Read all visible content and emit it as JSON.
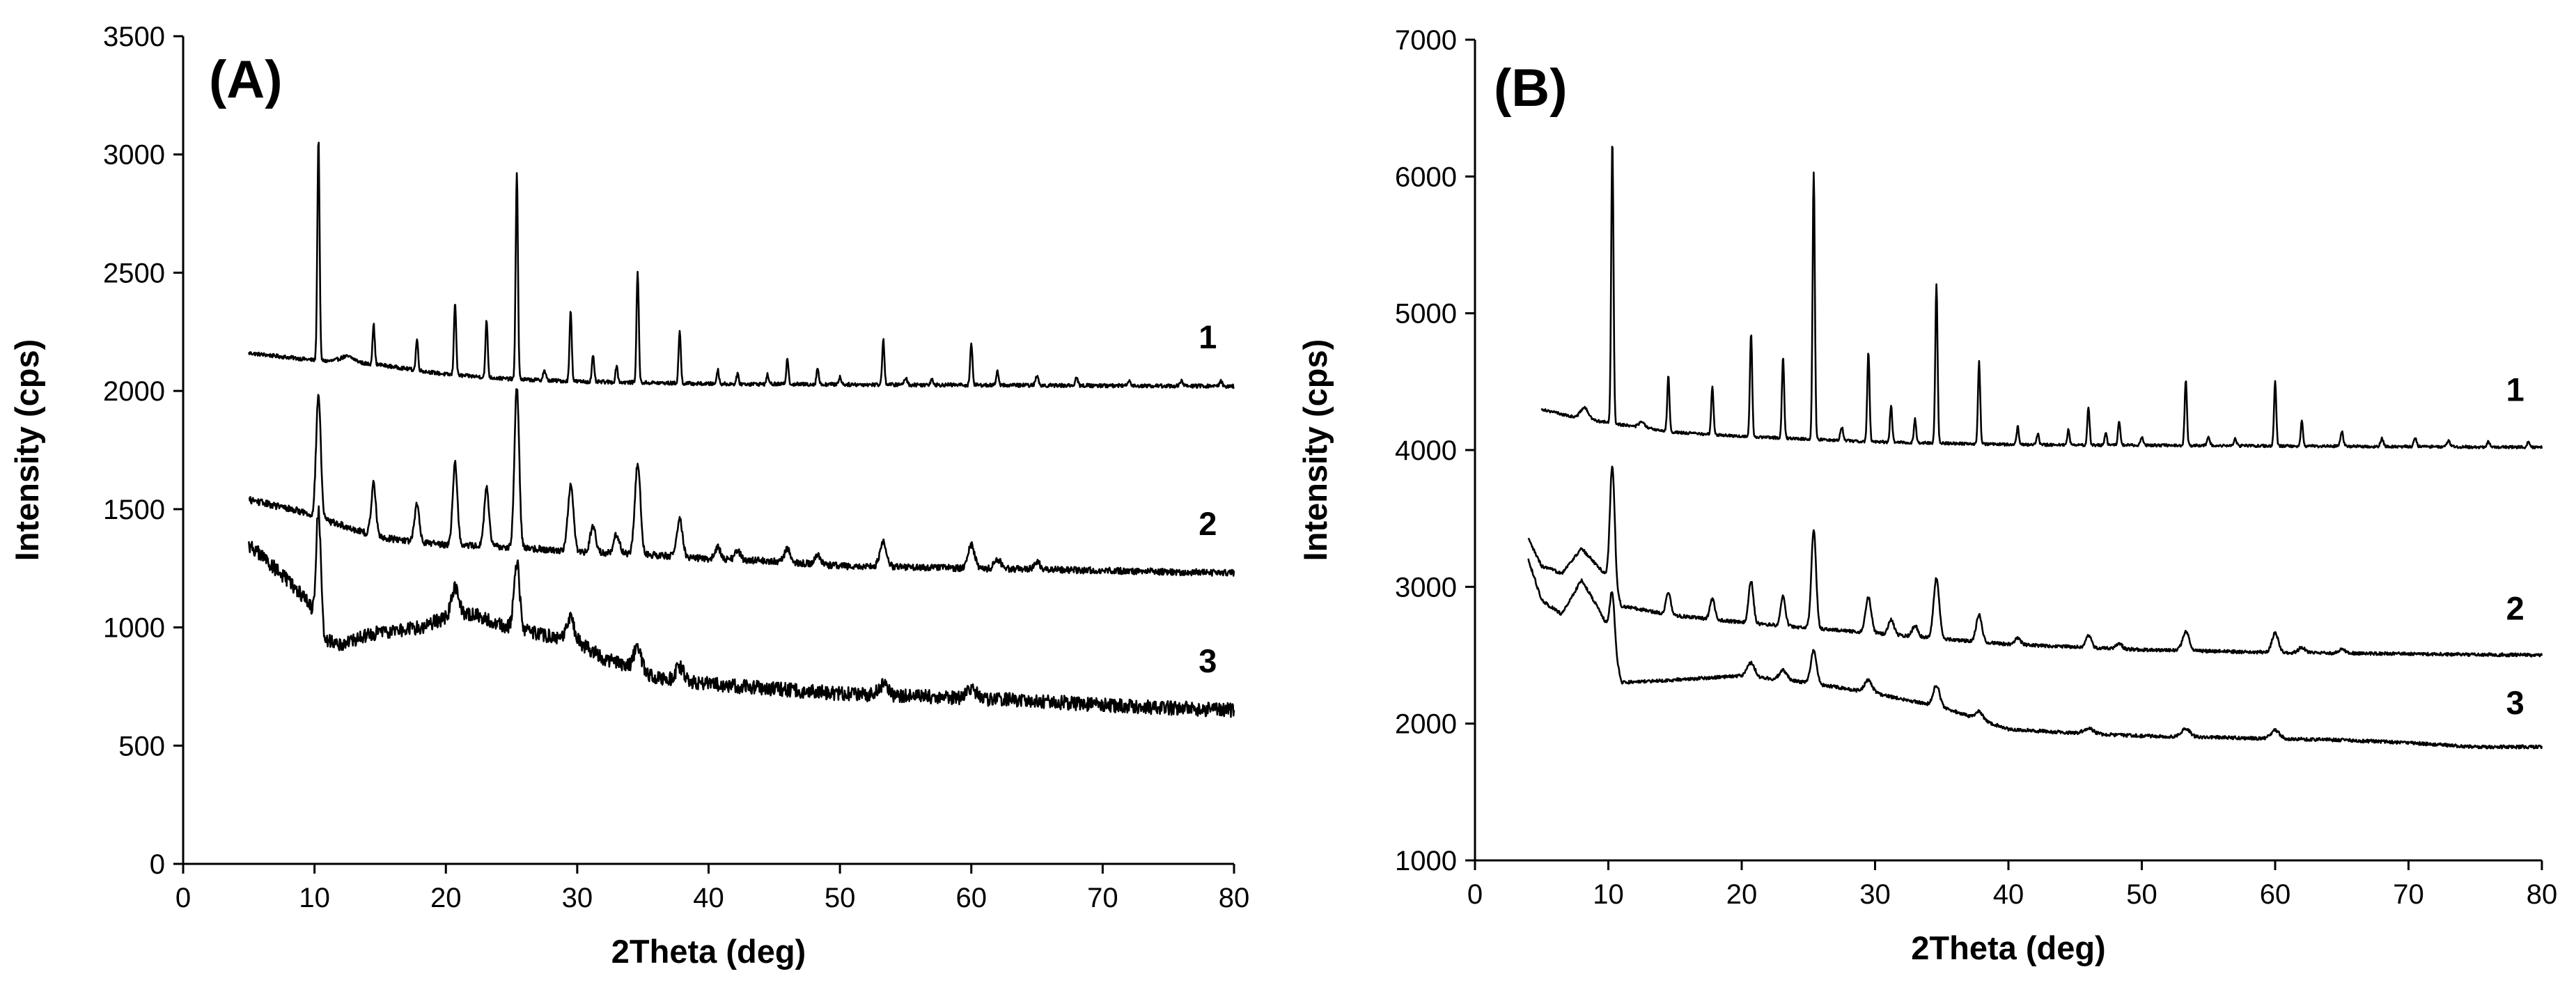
{
  "chart_data": [
    {
      "type": "line",
      "panel_label": "(A)",
      "xlabel": "2Theta (deg)",
      "ylabel": "Intensity (cps)",
      "xlim": [
        0,
        80
      ],
      "ylim": [
        0,
        3500
      ],
      "x_ticks": [
        "0",
        "10",
        "20",
        "30",
        "40",
        "50",
        "60",
        "70",
        "80"
      ],
      "y_ticks": [
        "0",
        "500",
        "1000",
        "1500",
        "2000",
        "2500",
        "3000",
        "3500"
      ],
      "grid": false,
      "series": [
        {
          "name": "1",
          "label_at": [
            78,
            2180
          ],
          "noise": 8,
          "baseline": [
            [
              5,
              2160
            ],
            [
              10,
              2130
            ],
            [
              15,
              2110
            ],
            [
              20,
              2070
            ],
            [
              25,
              2050
            ],
            [
              30,
              2040
            ],
            [
              40,
              2030
            ],
            [
              80,
              2020
            ]
          ],
          "peaks": [
            [
              10.3,
              940,
              0.12
            ],
            [
              12.5,
              25,
              0.8
            ],
            [
              14.5,
              170,
              0.12
            ],
            [
              17.8,
              130,
              0.12
            ],
            [
              20.7,
              310,
              0.12
            ],
            [
              23.1,
              240,
              0.12
            ],
            [
              25.4,
              880,
              0.12
            ],
            [
              27.5,
              40,
              0.15
            ],
            [
              29.5,
              300,
              0.12
            ],
            [
              31.2,
              110,
              0.12
            ],
            [
              33.0,
              70,
              0.12
            ],
            [
              34.6,
              470,
              0.12
            ],
            [
              37.8,
              220,
              0.12
            ],
            [
              40.7,
              60,
              0.12
            ],
            [
              42.2,
              40,
              0.12
            ],
            [
              44.5,
              40,
              0.12
            ],
            [
              46.0,
              110,
              0.12
            ],
            [
              48.3,
              70,
              0.12
            ],
            [
              50.0,
              30,
              0.15
            ],
            [
              53.3,
              190,
              0.12
            ],
            [
              55.0,
              30,
              0.15
            ],
            [
              57.0,
              25,
              0.15
            ],
            [
              60.0,
              180,
              0.12
            ],
            [
              62.0,
              60,
              0.12
            ],
            [
              65.0,
              40,
              0.15
            ],
            [
              68.0,
              30,
              0.15
            ],
            [
              72.0,
              25,
              0.15
            ],
            [
              76.0,
              20,
              0.15
            ],
            [
              79.0,
              20,
              0.15
            ]
          ]
        },
        {
          "name": "2",
          "label_at": [
            78,
            1390
          ],
          "noise": 14,
          "baseline": [
            [
              5,
              1540
            ],
            [
              9,
              1490
            ],
            [
              10.5,
              1460
            ],
            [
              15,
              1380
            ],
            [
              20,
              1350
            ],
            [
              25,
              1340
            ],
            [
              30,
              1320
            ],
            [
              35,
              1310
            ],
            [
              40,
              1290
            ],
            [
              45,
              1280
            ],
            [
              50,
              1260
            ],
            [
              60,
              1250
            ],
            [
              70,
              1240
            ],
            [
              80,
              1230
            ]
          ],
          "peaks": [
            [
              10.3,
              520,
              0.25
            ],
            [
              14.5,
              220,
              0.25
            ],
            [
              17.8,
              160,
              0.25
            ],
            [
              20.7,
              350,
              0.25
            ],
            [
              23.1,
              250,
              0.25
            ],
            [
              25.4,
              680,
              0.25
            ],
            [
              29.5,
              280,
              0.3
            ],
            [
              31.2,
              110,
              0.3
            ],
            [
              33.0,
              80,
              0.3
            ],
            [
              34.6,
              380,
              0.3
            ],
            [
              37.8,
              160,
              0.3
            ],
            [
              40.7,
              50,
              0.3
            ],
            [
              42.2,
              40,
              0.3
            ],
            [
              46.0,
              60,
              0.3
            ],
            [
              48.3,
              40,
              0.3
            ],
            [
              53.3,
              110,
              0.35
            ],
            [
              60.0,
              100,
              0.35
            ],
            [
              62.0,
              40,
              0.35
            ],
            [
              65.0,
              30,
              0.35
            ]
          ]
        },
        {
          "name": "3",
          "label_at": [
            78,
            810
          ],
          "noise": 30,
          "baseline": [
            [
              5,
              1350
            ],
            [
              7,
              1250
            ],
            [
              9.5,
              1110
            ],
            [
              10.8,
              950
            ],
            [
              12,
              930
            ],
            [
              15,
              980
            ],
            [
              18,
              1000
            ],
            [
              20,
              1040
            ],
            [
              22,
              1060
            ],
            [
              24,
              1010
            ],
            [
              26,
              990
            ],
            [
              28,
              960
            ],
            [
              30,
              940
            ],
            [
              32,
              870
            ],
            [
              34,
              830
            ],
            [
              36,
              790
            ],
            [
              40,
              760
            ],
            [
              45,
              740
            ],
            [
              50,
              720
            ],
            [
              55,
              710
            ],
            [
              60,
              700
            ],
            [
              65,
              690
            ],
            [
              70,
              670
            ],
            [
              75,
              660
            ],
            [
              80,
              650
            ]
          ],
          "peaks": [
            [
              10.3,
              480,
              0.25
            ],
            [
              20.7,
              120,
              0.4
            ],
            [
              25.4,
              280,
              0.3
            ],
            [
              29.5,
              90,
              0.4
            ],
            [
              34.6,
              100,
              0.4
            ],
            [
              37.8,
              60,
              0.4
            ],
            [
              53.3,
              40,
              0.5
            ],
            [
              60.0,
              40,
              0.5
            ]
          ]
        }
      ]
    },
    {
      "type": "line",
      "panel_label": "(B)",
      "xlabel": "2Theta (deg)",
      "ylabel": "Intensity (cps)",
      "xlim": [
        0,
        80
      ],
      "ylim": [
        1000,
        7000
      ],
      "x_ticks": [
        "0",
        "10",
        "20",
        "30",
        "40",
        "50",
        "60",
        "70",
        "80"
      ],
      "y_ticks": [
        "1000",
        "2000",
        "3000",
        "4000",
        "5000",
        "6000",
        "7000"
      ],
      "grid": false,
      "series": [
        {
          "name": "1",
          "label_at": [
            78,
            4360
          ],
          "noise": 10,
          "baseline": [
            [
              5,
              4300
            ],
            [
              7,
              4250
            ],
            [
              10,
              4200
            ],
            [
              15,
              4130
            ],
            [
              20,
              4100
            ],
            [
              25,
              4080
            ],
            [
              30,
              4060
            ],
            [
              40,
              4040
            ],
            [
              80,
              4020
            ]
          ],
          "peaks": [
            [
              8.2,
              80,
              0.4
            ],
            [
              10.3,
              2070,
              0.12
            ],
            [
              12.5,
              40,
              0.3
            ],
            [
              14.5,
              400,
              0.12
            ],
            [
              17.8,
              350,
              0.12
            ],
            [
              20.7,
              760,
              0.12
            ],
            [
              23.1,
              590,
              0.12
            ],
            [
              25.4,
              1950,
              0.12
            ],
            [
              27.5,
              100,
              0.15
            ],
            [
              29.5,
              660,
              0.12
            ],
            [
              31.2,
              270,
              0.12
            ],
            [
              33.0,
              170,
              0.12
            ],
            [
              34.6,
              1160,
              0.12
            ],
            [
              37.8,
              600,
              0.12
            ],
            [
              40.7,
              130,
              0.12
            ],
            [
              42.2,
              80,
              0.12
            ],
            [
              44.5,
              110,
              0.12
            ],
            [
              46.0,
              280,
              0.12
            ],
            [
              47.3,
              90,
              0.12
            ],
            [
              48.3,
              180,
              0.12
            ],
            [
              50.0,
              60,
              0.15
            ],
            [
              53.3,
              480,
              0.12
            ],
            [
              55.0,
              60,
              0.15
            ],
            [
              57.0,
              50,
              0.15
            ],
            [
              60.0,
              470,
              0.12
            ],
            [
              62.0,
              180,
              0.12
            ],
            [
              65.0,
              110,
              0.15
            ],
            [
              68.0,
              60,
              0.15
            ],
            [
              70.5,
              60,
              0.15
            ],
            [
              73.0,
              50,
              0.15
            ],
            [
              76.0,
              40,
              0.15
            ],
            [
              79.0,
              40,
              0.15
            ]
          ]
        },
        {
          "name": "2",
          "label_at": [
            78,
            2760
          ],
          "noise": 12,
          "baseline": [
            [
              4,
              3350
            ],
            [
              5,
              3150
            ],
            [
              6.5,
              3100
            ],
            [
              8,
              3280
            ],
            [
              9.2,
              3150
            ],
            [
              10.2,
              3050
            ],
            [
              11,
              2860
            ],
            [
              15,
              2790
            ],
            [
              20,
              2740
            ],
            [
              25,
              2700
            ],
            [
              30,
              2660
            ],
            [
              35,
              2620
            ],
            [
              40,
              2580
            ],
            [
              45,
              2560
            ],
            [
              50,
              2540
            ],
            [
              60,
              2520
            ],
            [
              70,
              2510
            ],
            [
              80,
              2500
            ]
          ],
          "peaks": [
            [
              10.3,
              860,
              0.25
            ],
            [
              14.5,
              160,
              0.25
            ],
            [
              17.8,
              150,
              0.25
            ],
            [
              20.7,
              310,
              0.25
            ],
            [
              23.1,
              220,
              0.25
            ],
            [
              25.4,
              720,
              0.25
            ],
            [
              29.5,
              260,
              0.3
            ],
            [
              31.2,
              110,
              0.3
            ],
            [
              33.0,
              80,
              0.3
            ],
            [
              34.6,
              440,
              0.3
            ],
            [
              37.8,
              200,
              0.3
            ],
            [
              40.7,
              50,
              0.3
            ],
            [
              46.0,
              90,
              0.3
            ],
            [
              48.3,
              40,
              0.3
            ],
            [
              53.3,
              140,
              0.35
            ],
            [
              60.0,
              140,
              0.35
            ],
            [
              62.0,
              40,
              0.35
            ],
            [
              65.0,
              30,
              0.35
            ]
          ]
        },
        {
          "name": "3",
          "label_at": [
            78,
            2070
          ],
          "noise": 12,
          "baseline": [
            [
              4,
              3200
            ],
            [
              5,
              2900
            ],
            [
              6.5,
              2800
            ],
            [
              8,
              3050
            ],
            [
              9.2,
              2850
            ],
            [
              10,
              2700
            ],
            [
              11,
              2300
            ],
            [
              15,
              2320
            ],
            [
              20,
              2350
            ],
            [
              25,
              2300
            ],
            [
              30,
              2220
            ],
            [
              35,
              2120
            ],
            [
              40,
              1960
            ],
            [
              45,
              1930
            ],
            [
              50,
              1910
            ],
            [
              55,
              1900
            ],
            [
              60,
              1890
            ],
            [
              65,
              1880
            ],
            [
              70,
              1860
            ],
            [
              75,
              1830
            ],
            [
              80,
              1830
            ]
          ],
          "peaks": [
            [
              10.3,
              380,
              0.25
            ],
            [
              20.7,
              100,
              0.4
            ],
            [
              23.1,
              70,
              0.4
            ],
            [
              25.4,
              240,
              0.3
            ],
            [
              29.5,
              90,
              0.4
            ],
            [
              34.6,
              150,
              0.35
            ],
            [
              37.8,
              60,
              0.4
            ],
            [
              46.0,
              40,
              0.5
            ],
            [
              53.3,
              60,
              0.45
            ],
            [
              60.0,
              60,
              0.45
            ]
          ]
        }
      ]
    }
  ]
}
